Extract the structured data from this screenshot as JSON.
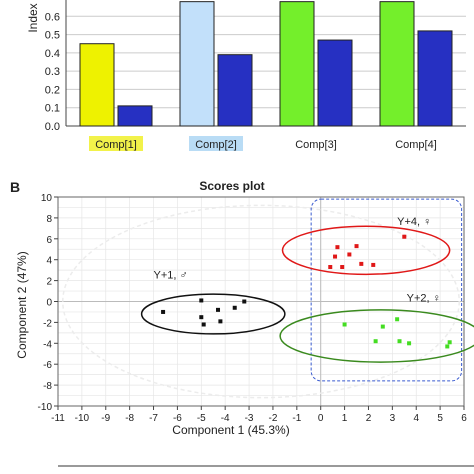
{
  "chart_data": [
    {
      "type": "bar",
      "ylabel": "Index",
      "ylim": [
        0,
        0.7
      ],
      "yticks": [
        "0.0",
        "0.1",
        "0.2",
        "0.3",
        "0.4",
        "0.5",
        "0.6"
      ],
      "grid": true,
      "categories": [
        "Comp[1]",
        "Comp[2]",
        "Comp[3]",
        "Comp[4]"
      ],
      "category_highlight": [
        "#f2f24a",
        "#b9dcf5",
        "",
        ""
      ],
      "series": [
        {
          "color_by_category": [
            "#eef200",
            "#c2e0fa",
            "#74ef2b",
            "#74ef2b"
          ],
          "values": [
            0.45,
            0.68,
            0.68,
            0.68
          ]
        },
        {
          "color": "#2630c2",
          "values": [
            0.11,
            0.39,
            0.47,
            0.52
          ]
        }
      ]
    },
    {
      "type": "scatter",
      "panel_label": "B",
      "title": "Scores plot",
      "xlabel": "Component  1 (45.3%)",
      "ylabel": "Component  2 (47%)",
      "xlim": [
        -11,
        6
      ],
      "ylim": [
        -10,
        10
      ],
      "xticks": [
        -11,
        -10,
        -9,
        -8,
        -7,
        -6,
        -5,
        -4,
        -3,
        -2,
        -1,
        0,
        1,
        2,
        3,
        4,
        5,
        6
      ],
      "yticks": [
        -10,
        -8,
        -6,
        -4,
        -2,
        0,
        2,
        4,
        6,
        8,
        10
      ],
      "grid": true,
      "groups": [
        {
          "label": "Y+1, ♂",
          "color": "#111111",
          "ellipse_color": "#111111",
          "center": [
            -4.5,
            -1.2
          ],
          "radii": [
            3.0,
            1.9
          ],
          "label_at": [
            -7.0,
            2.2
          ],
          "points": [
            [
              -6.6,
              -1.0
            ],
            [
              -5.0,
              0.1
            ],
            [
              -4.9,
              -2.2
            ],
            [
              -4.3,
              -0.8
            ],
            [
              -4.2,
              -1.9
            ],
            [
              -3.6,
              -0.6
            ],
            [
              -3.2,
              0.0
            ],
            [
              -5.0,
              -1.5
            ]
          ]
        },
        {
          "label": "Y+4, ♀",
          "color": "#e01818",
          "ellipse_color": "#e01818",
          "center": [
            1.9,
            4.9
          ],
          "radii": [
            3.5,
            2.3
          ],
          "label_at": [
            3.2,
            7.3
          ],
          "points": [
            [
              0.7,
              5.2
            ],
            [
              0.6,
              4.3
            ],
            [
              1.2,
              4.5
            ],
            [
              1.5,
              5.3
            ],
            [
              1.7,
              3.6
            ],
            [
              0.9,
              3.3
            ],
            [
              2.2,
              3.5
            ],
            [
              3.5,
              6.2
            ],
            [
              0.4,
              3.3
            ]
          ]
        },
        {
          "label": "Y+2, ♀",
          "color": "#44dd22",
          "ellipse_color": "#3a8a1e",
          "center": [
            2.5,
            -3.3
          ],
          "radii": [
            4.2,
            2.5
          ],
          "label_at": [
            3.6,
            0.0
          ],
          "points": [
            [
              1.0,
              -2.2
            ],
            [
              2.6,
              -2.4
            ],
            [
              3.2,
              -1.7
            ],
            [
              2.3,
              -3.8
            ],
            [
              3.3,
              -3.8
            ],
            [
              3.7,
              -4.0
            ],
            [
              5.3,
              -4.3
            ],
            [
              5.4,
              -3.9
            ]
          ]
        }
      ]
    }
  ]
}
